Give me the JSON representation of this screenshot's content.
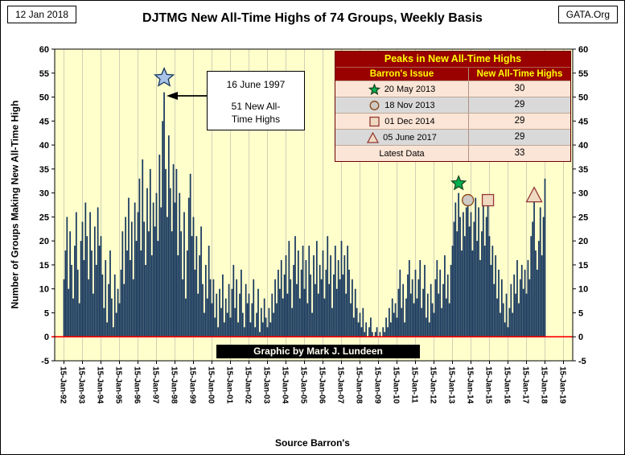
{
  "header": {
    "date": "12 Jan 2018",
    "org": "GATA.Org",
    "title": "DJTMG New All-Time Highs of 74 Groups, Weekly Basis"
  },
  "chart": {
    "y_axis_title": "Number of Groups Making New All-Time High",
    "source": "Source Barron's",
    "credit": "Graphic by Mark J. Lundeen"
  },
  "annotation": {
    "date": "16 June 1997",
    "text": "51 New All-Time Highs"
  },
  "peaks_table": {
    "title": "Peaks in New All-Time Highs",
    "col1": "Barron's Issue",
    "col2": "New All-Time Highs",
    "rows": [
      {
        "marker": "star-green",
        "label": "20 May 2013",
        "value": "30"
      },
      {
        "marker": "circle",
        "label": "18 Nov 2013",
        "value": "29"
      },
      {
        "marker": "square",
        "label": "01 Dec 2014",
        "value": "29"
      },
      {
        "marker": "triangle",
        "label": "05 June 2017",
        "value": "29"
      },
      {
        "marker": "none",
        "label": "Latest Data",
        "value": "33"
      }
    ]
  },
  "chart_data": {
    "type": "bar",
    "title": "DJTMG New All-Time Highs of 74 Groups, Weekly Basis",
    "ylabel": "Number of Groups Making New All-Time High",
    "xlabel": "Source Barron's",
    "ylim": [
      -5,
      60
    ],
    "ytick_step": 5,
    "plot_bg": "#FFFFCC",
    "bar_color": "#17375E",
    "zero_line_color": "#FF0000",
    "x_tick_labels": [
      "15-Jan-92",
      "15-Jan-93",
      "15-Jan-94",
      "15-Jan-95",
      "15-Jan-96",
      "15-Jan-97",
      "15-Jan-98",
      "15-Jan-99",
      "15-Jan-00",
      "15-Jan-01",
      "15-Jan-02",
      "15-Jan-03",
      "15-Jan-04",
      "15-Jan-05",
      "15-Jan-06",
      "15-Jan-07",
      "15-Jan-08",
      "15-Jan-09",
      "15-Jan-10",
      "15-Jan-11",
      "15-Jan-12",
      "15-Jan-13",
      "15-Jan-14",
      "15-Jan-15",
      "15-Jan-16",
      "15-Jan-17",
      "15-Jan-18",
      "15-Jan-19"
    ],
    "series_start": "Jan-1992",
    "values": [
      12,
      18,
      25,
      10,
      22,
      15,
      8,
      19,
      26,
      14,
      7,
      20,
      24,
      16,
      28,
      21,
      12,
      26,
      18,
      9,
      23,
      15,
      27,
      19,
      21,
      13,
      6,
      16,
      3,
      11,
      18,
      8,
      2,
      13,
      5,
      10,
      7,
      14,
      22,
      11,
      25,
      18,
      29,
      16,
      24,
      12,
      28,
      20,
      26,
      33,
      18,
      37,
      24,
      15,
      31,
      22,
      35,
      17,
      28,
      23,
      30,
      20,
      38,
      27,
      45,
      51,
      35,
      25,
      42,
      31,
      22,
      36,
      28,
      35,
      17,
      30,
      22,
      12,
      26,
      8,
      18,
      29,
      34,
      21,
      25,
      14,
      21,
      9,
      17,
      23,
      11,
      5,
      15,
      8,
      19,
      12,
      7,
      12,
      4,
      9,
      2,
      10,
      6,
      13,
      3,
      8,
      5,
      11,
      4,
      10,
      15,
      6,
      12,
      3,
      9,
      14,
      5,
      2,
      11,
      7,
      9,
      3,
      7,
      12,
      2,
      5,
      10,
      1,
      6,
      3,
      8,
      4,
      2,
      6,
      3,
      9,
      5,
      12,
      7,
      14,
      10,
      16,
      8,
      13,
      17,
      9,
      20,
      12,
      6,
      15,
      21,
      11,
      18,
      8,
      14,
      19,
      10,
      16,
      7,
      19,
      13,
      5,
      17,
      11,
      20,
      9,
      15,
      12,
      18,
      8,
      14,
      21,
      11,
      17,
      6,
      13,
      19,
      10,
      16,
      12,
      20,
      13,
      17,
      9,
      19,
      14,
      7,
      12,
      4,
      10,
      6,
      3,
      5,
      2,
      6,
      1,
      3,
      0,
      2,
      4,
      1,
      0,
      1,
      2,
      0,
      1,
      0,
      2,
      1,
      4,
      2,
      6,
      3,
      8,
      5,
      7,
      4,
      10,
      14,
      6,
      11,
      3,
      8,
      13,
      16,
      9,
      12,
      7,
      14,
      8,
      12,
      16,
      6,
      10,
      15,
      4,
      9,
      3,
      11,
      7,
      5,
      12,
      16,
      9,
      14,
      6,
      11,
      17,
      8,
      13,
      7,
      15,
      19,
      24,
      28,
      22,
      30,
      25,
      18,
      26,
      21,
      27,
      29,
      23,
      26,
      18,
      24,
      29,
      20,
      27,
      16,
      22,
      28,
      19,
      25,
      29,
      21,
      15,
      19,
      11,
      17,
      8,
      14,
      5,
      12,
      7,
      3,
      9,
      2,
      6,
      11,
      5,
      13,
      9,
      16,
      7,
      12,
      15,
      10,
      14,
      9,
      16,
      12,
      21,
      24,
      29,
      18,
      14,
      20,
      27,
      17,
      25,
      33
    ],
    "markers": [
      {
        "shape": "star",
        "label": "16 June 1997",
        "month_index": 65,
        "y": 54,
        "size": 12,
        "fill": "#A9C4E8",
        "stroke": "#17375E"
      },
      {
        "shape": "star",
        "label": "20 May 2013",
        "month_index": 256,
        "y": 32,
        "size": 9,
        "fill": "#00B050",
        "stroke": "#1E4620"
      },
      {
        "shape": "circle",
        "label": "18 Nov 2013",
        "month_index": 262,
        "y": 28.5,
        "size": 7,
        "fill": "#CDC9C3",
        "stroke": "#8B4513"
      },
      {
        "shape": "square",
        "label": "01 Dec 2014",
        "month_index": 275,
        "y": 28.5,
        "size": 7,
        "fill": "#EFD9C1",
        "stroke": "#943634"
      },
      {
        "shape": "triangle",
        "label": "05 June 2017",
        "month_index": 305,
        "y": 29.5,
        "size": 10,
        "fill": "#EFD9C1",
        "stroke": "#943634"
      }
    ]
  }
}
